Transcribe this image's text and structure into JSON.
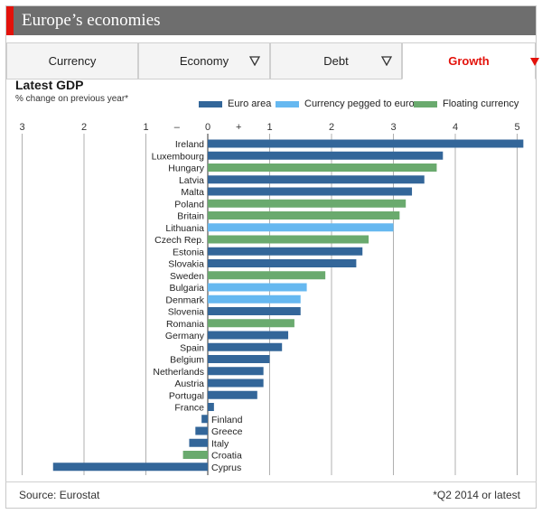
{
  "header": {
    "title": "Europe’s economies"
  },
  "tabs": [
    {
      "label": "Currency",
      "icon": "none",
      "active": false
    },
    {
      "label": "Economy",
      "icon": "filter-triangle-icon",
      "active": false
    },
    {
      "label": "Debt",
      "icon": "filter-triangle-icon",
      "active": false
    },
    {
      "label": "Growth",
      "icon": "sort-down-triangle-icon",
      "active": true
    }
  ],
  "colors": {
    "euro_area": "#336699",
    "pegged": "#66b8f0",
    "floating": "#6aaa6e",
    "accent": "#e3120b"
  },
  "chart_data": {
    "type": "bar",
    "orientation": "horizontal",
    "title": "Latest GDP",
    "subtitle": "% change on previous year*",
    "legend": [
      {
        "name": "Euro area",
        "key": "euro_area"
      },
      {
        "name": "Currency pegged to euro",
        "key": "pegged"
      },
      {
        "name": "Floating currency",
        "key": "floating"
      }
    ],
    "xlim": [
      -3,
      5.1
    ],
    "ticks": [
      {
        "value": -3,
        "label": "3"
      },
      {
        "value": -2,
        "label": "2"
      },
      {
        "value": -1,
        "label": "1"
      },
      {
        "value": -0.5,
        "label": "–"
      },
      {
        "value": 0,
        "label": "0"
      },
      {
        "value": 0.5,
        "label": "+"
      },
      {
        "value": 1,
        "label": "1"
      },
      {
        "value": 2,
        "label": "2"
      },
      {
        "value": 3,
        "label": "3"
      },
      {
        "value": 4,
        "label": "4"
      },
      {
        "value": 5,
        "label": "5"
      }
    ],
    "gridlines": [
      -3,
      -2,
      -1,
      1,
      2,
      3,
      4,
      5
    ],
    "countries": [
      {
        "name": "Ireland",
        "value": 5.1,
        "group": "euro_area"
      },
      {
        "name": "Luxembourg",
        "value": 3.8,
        "group": "euro_area"
      },
      {
        "name": "Hungary",
        "value": 3.7,
        "group": "floating"
      },
      {
        "name": "Latvia",
        "value": 3.5,
        "group": "euro_area"
      },
      {
        "name": "Malta",
        "value": 3.3,
        "group": "euro_area"
      },
      {
        "name": "Poland",
        "value": 3.2,
        "group": "floating"
      },
      {
        "name": "Britain",
        "value": 3.1,
        "group": "floating"
      },
      {
        "name": "Lithuania",
        "value": 3.0,
        "group": "pegged"
      },
      {
        "name": "Czech Rep.",
        "value": 2.6,
        "group": "floating"
      },
      {
        "name": "Estonia",
        "value": 2.5,
        "group": "euro_area"
      },
      {
        "name": "Slovakia",
        "value": 2.4,
        "group": "euro_area"
      },
      {
        "name": "Sweden",
        "value": 1.9,
        "group": "floating"
      },
      {
        "name": "Bulgaria",
        "value": 1.6,
        "group": "pegged"
      },
      {
        "name": "Denmark",
        "value": 1.5,
        "group": "pegged"
      },
      {
        "name": "Slovenia",
        "value": 1.5,
        "group": "euro_area"
      },
      {
        "name": "Romania",
        "value": 1.4,
        "group": "floating"
      },
      {
        "name": "Germany",
        "value": 1.3,
        "group": "euro_area"
      },
      {
        "name": "Spain",
        "value": 1.2,
        "group": "euro_area"
      },
      {
        "name": "Belgium",
        "value": 1.0,
        "group": "euro_area"
      },
      {
        "name": "Netherlands",
        "value": 0.9,
        "group": "euro_area"
      },
      {
        "name": "Austria",
        "value": 0.9,
        "group": "euro_area"
      },
      {
        "name": "Portugal",
        "value": 0.8,
        "group": "euro_area"
      },
      {
        "name": "France",
        "value": 0.1,
        "group": "euro_area"
      },
      {
        "name": "Finland",
        "value": -0.1,
        "group": "euro_area"
      },
      {
        "name": "Greece",
        "value": -0.2,
        "group": "euro_area"
      },
      {
        "name": "Italy",
        "value": -0.3,
        "group": "euro_area"
      },
      {
        "name": "Croatia",
        "value": -0.4,
        "group": "floating"
      },
      {
        "name": "Cyprus",
        "value": -2.5,
        "group": "euro_area"
      }
    ]
  },
  "footer": {
    "source": "Source: Eurostat",
    "note": "*Q2 2014 or latest"
  }
}
